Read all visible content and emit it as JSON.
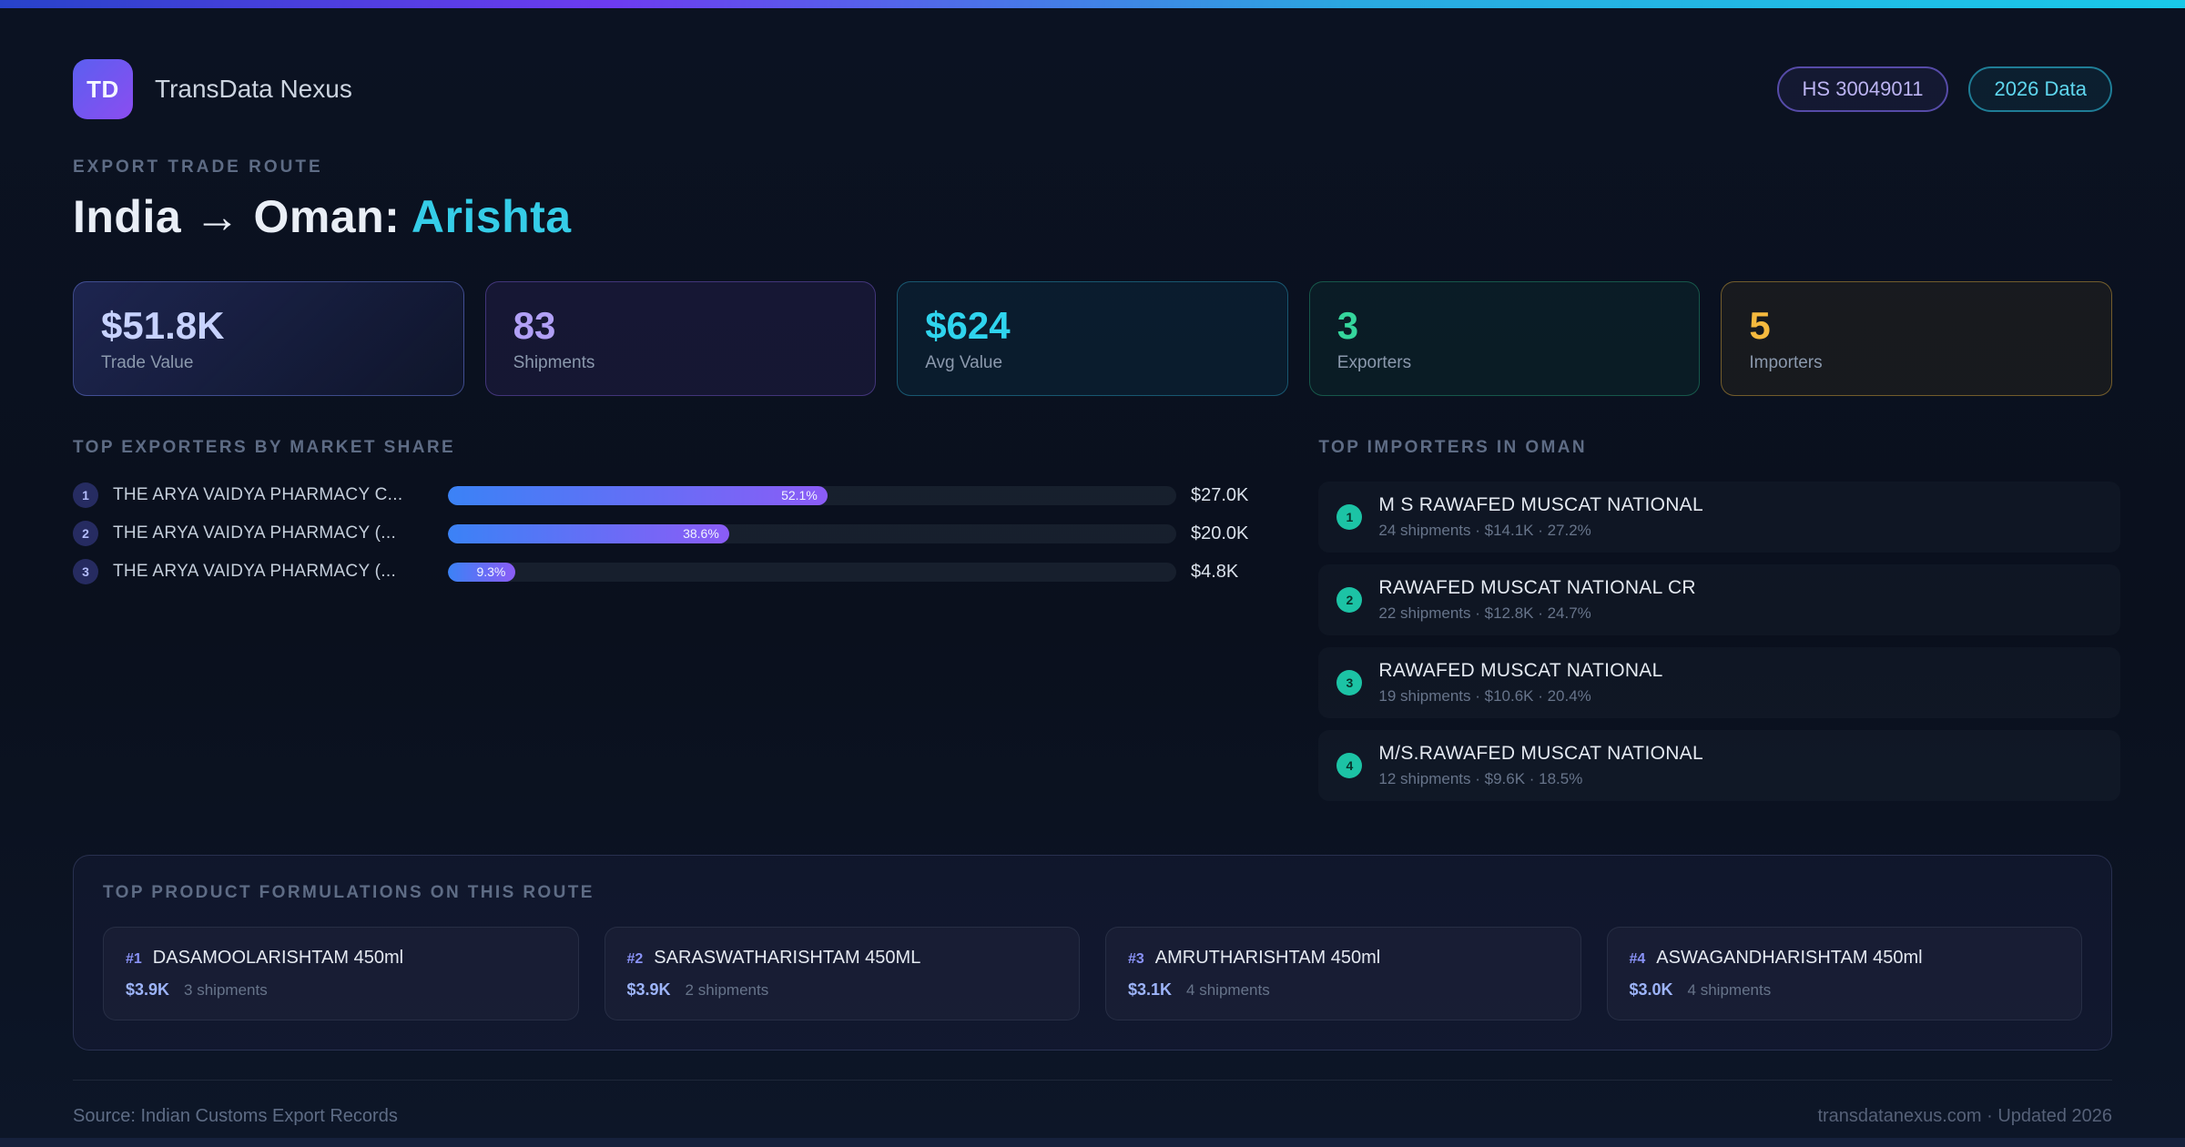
{
  "header": {
    "logo": "TD",
    "app_name": "TransData Nexus",
    "badge_hs": "HS 30049011",
    "badge_year": "2026 Data"
  },
  "hero": {
    "eyebrow": "EXPORT TRADE ROUTE",
    "title_main": "India → Oman: ",
    "title_accent": "Arishta"
  },
  "stats": [
    {
      "value": "$51.8K",
      "label": "Trade Value"
    },
    {
      "value": "83",
      "label": "Shipments"
    },
    {
      "value": "$624",
      "label": "Avg Value"
    },
    {
      "value": "3",
      "label": "Exporters"
    },
    {
      "value": "5",
      "label": "Importers"
    }
  ],
  "exporters": {
    "heading": "TOP EXPORTERS BY MARKET SHARE",
    "rows": [
      {
        "rank": "1",
        "name": "THE ARYA VAIDYA PHARMACY C...",
        "pct": 52.1,
        "pct_label": "52.1%",
        "value": "$27.0K"
      },
      {
        "rank": "2",
        "name": "THE ARYA VAIDYA PHARMACY (...",
        "pct": 38.6,
        "pct_label": "38.6%",
        "value": "$20.0K"
      },
      {
        "rank": "3",
        "name": "THE ARYA VAIDYA PHARMACY (...",
        "pct": 9.3,
        "pct_label": "9.3%",
        "value": "$4.8K"
      }
    ]
  },
  "importers": {
    "heading": "TOP IMPORTERS IN OMAN",
    "rows": [
      {
        "rank": "1",
        "name": "M S RAWAFED MUSCAT NATIONAL",
        "meta": "24 shipments · $14.1K · 27.2%"
      },
      {
        "rank": "2",
        "name": "RAWAFED MUSCAT NATIONAL CR",
        "meta": "22 shipments · $12.8K · 24.7%"
      },
      {
        "rank": "3",
        "name": "RAWAFED MUSCAT NATIONAL",
        "meta": "19 shipments · $10.6K · 20.4%"
      },
      {
        "rank": "4",
        "name": "M/S.RAWAFED MUSCAT NATIONAL",
        "meta": "12 shipments · $9.6K · 18.5%"
      }
    ]
  },
  "formulations": {
    "heading": "TOP PRODUCT FORMULATIONS ON THIS ROUTE",
    "cards": [
      {
        "rank": "#1",
        "name": "DASAMOOLARISHTAM 450ml",
        "value": "$3.9K",
        "shipments": "3 shipments"
      },
      {
        "rank": "#2",
        "name": "SARASWATHARISHTAM 450ML",
        "value": "$3.9K",
        "shipments": "2 shipments"
      },
      {
        "rank": "#3",
        "name": "AMRUTHARISHTAM 450ml",
        "value": "$3.1K",
        "shipments": "4 shipments"
      },
      {
        "rank": "#4",
        "name": "ASWAGANDHARISHTAM 450ml",
        "value": "$3.0K",
        "shipments": "4 shipments"
      }
    ]
  },
  "footer": {
    "source": "Source: Indian Customs Export Records",
    "site": "transdatanexus.com · Updated 2026"
  },
  "chart_data": {
    "type": "bar",
    "title": "Top exporters by market share",
    "categories": [
      "THE ARYA VAIDYA PHARMACY C...",
      "THE ARYA VAIDYA PHARMACY (...",
      "THE ARYA VAIDYA PHARMACY (..."
    ],
    "values": [
      52.1,
      38.6,
      9.3
    ],
    "value_labels": [
      "$27.0K",
      "$20.0K",
      "$4.8K"
    ],
    "xlabel": "Market share %",
    "ylabel": "",
    "xlim": [
      0,
      100
    ]
  },
  "colors": {
    "accent_cyan": "#35cde8",
    "accent_purple": "#8b5cf6",
    "accent_blue": "#3b82f6",
    "accent_green": "#35d69d",
    "accent_amber": "#f6ba3e"
  }
}
